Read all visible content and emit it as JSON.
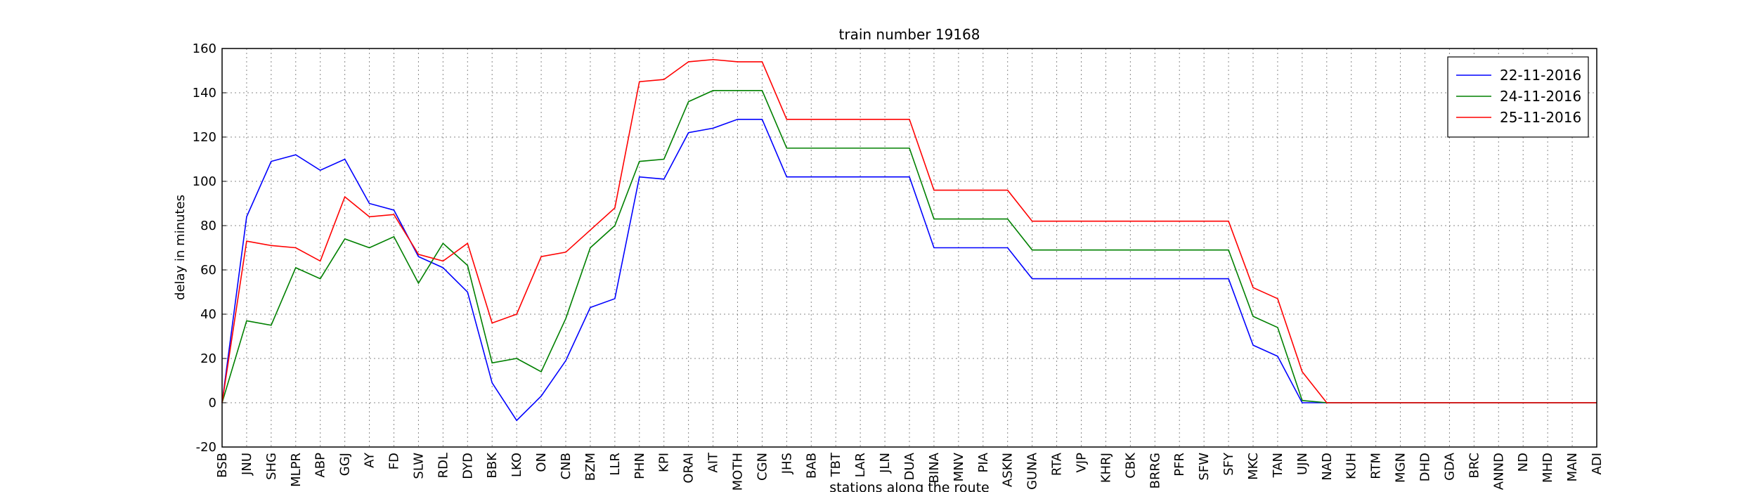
{
  "chart_data": {
    "type": "line",
    "title": "train number 19168",
    "xlabel": "stations along the route",
    "ylabel": "delay in minutes",
    "categories": [
      "BSB",
      "JNU",
      "SHG",
      "MLPR",
      "ABP",
      "GGJ",
      "AY",
      "FD",
      "SLW",
      "RDL",
      "DYD",
      "BBK",
      "LKO",
      "ON",
      "CNB",
      "BZM",
      "LLR",
      "PHN",
      "KPI",
      "ORAI",
      "AIT",
      "MOTH",
      "CGN",
      "JHS",
      "BAB",
      "TBT",
      "LAR",
      "JLN",
      "DUA",
      "BINA",
      "MNV",
      "PIA",
      "ASKN",
      "GUNA",
      "RTA",
      "VJP",
      "KHRJ",
      "CBK",
      "BRRG",
      "PFR",
      "SFW",
      "SFY",
      "MKC",
      "TAN",
      "UJN",
      "NAD",
      "KUH",
      "RTM",
      "MGN",
      "DHD",
      "GDA",
      "BRC",
      "ANND",
      "ND",
      "MHD",
      "MAN",
      "ADI"
    ],
    "series": [
      {
        "name": "22-11-2016",
        "color": "#0000ff",
        "values": [
          0,
          84,
          109,
          112,
          105,
          110,
          90,
          87,
          66,
          61,
          50,
          9,
          -8,
          3,
          19,
          43,
          47,
          102,
          101,
          122,
          124,
          128,
          128,
          102,
          102,
          102,
          102,
          102,
          102,
          70,
          70,
          70,
          70,
          56,
          56,
          56,
          56,
          56,
          56,
          56,
          56,
          56,
          26,
          21,
          0,
          0,
          0,
          0,
          0,
          0,
          0,
          0,
          0,
          0,
          0,
          0,
          0
        ]
      },
      {
        "name": "24-11-2016",
        "color": "#008000",
        "values": [
          0,
          37,
          35,
          61,
          56,
          74,
          70,
          75,
          54,
          72,
          62,
          18,
          20,
          14,
          38,
          70,
          80,
          109,
          110,
          136,
          141,
          141,
          141,
          115,
          115,
          115,
          115,
          115,
          115,
          83,
          83,
          83,
          83,
          69,
          69,
          69,
          69,
          69,
          69,
          69,
          69,
          69,
          39,
          34,
          1,
          0,
          0,
          0,
          0,
          0,
          0,
          0,
          0,
          0,
          0,
          0,
          0
        ]
      },
      {
        "name": "25-11-2016",
        "color": "#ff0000",
        "values": [
          0,
          73,
          71,
          70,
          64,
          93,
          84,
          85,
          67,
          64,
          72,
          36,
          40,
          66,
          68,
          78,
          88,
          145,
          146,
          154,
          155,
          154,
          154,
          128,
          128,
          128,
          128,
          128,
          128,
          96,
          96,
          96,
          96,
          82,
          82,
          82,
          82,
          82,
          82,
          82,
          82,
          82,
          52,
          47,
          14,
          0,
          0,
          0,
          0,
          0,
          0,
          0,
          0,
          0,
          0,
          0,
          0
        ]
      }
    ],
    "ylim": [
      -20,
      160
    ],
    "yticks": [
      -20,
      0,
      20,
      40,
      60,
      80,
      100,
      120,
      140,
      160
    ],
    "grid": true,
    "legend": "upper right"
  }
}
